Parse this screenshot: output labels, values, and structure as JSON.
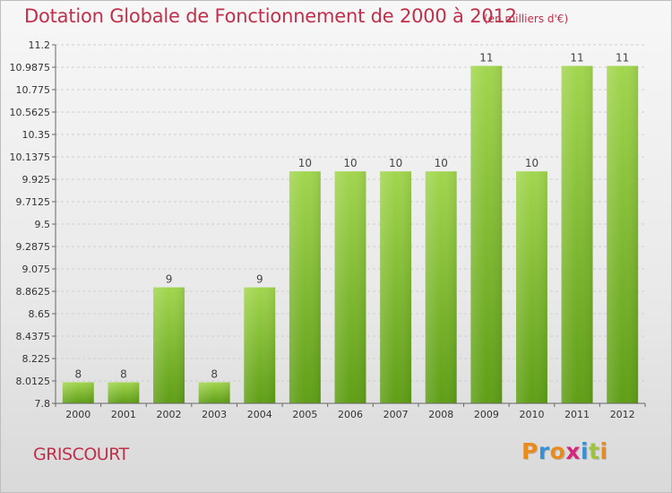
{
  "title": "Dotation Globale de Fonctionnement de 2000 à 2012",
  "subtitle": "(en milliers d'€)",
  "place_name": "GRISCOURT",
  "brand": {
    "letters": [
      "P",
      "r",
      "o",
      "x",
      "i",
      "t",
      "i"
    ],
    "colors": [
      "#e98a1c",
      "#3a90d4",
      "#e98a1c",
      "#d4287a",
      "#3a90d4",
      "#9bc43a",
      "#e98a1c"
    ]
  },
  "colors": {
    "bar": "#7cbf35",
    "title": "#c0304a"
  },
  "chart_data": {
    "type": "bar",
    "categories": [
      "2000",
      "2001",
      "2002",
      "2003",
      "2004",
      "2005",
      "2006",
      "2007",
      "2008",
      "2009",
      "2010",
      "2011",
      "2012"
    ],
    "values": [
      8,
      8,
      9,
      8,
      9,
      10,
      10,
      10,
      10,
      11,
      10,
      11,
      11
    ],
    "data_labels": [
      "8",
      "8",
      "9",
      "8",
      "9",
      "10",
      "10",
      "10",
      "10",
      "11",
      "10",
      "11",
      "11"
    ],
    "bar_levels": [
      8.0,
      8.0,
      8.9,
      8.0,
      8.9,
      10.0,
      10.0,
      10.0,
      10.0,
      11.0,
      10.0,
      11.0,
      11.0
    ],
    "ylim": [
      7.8,
      11.2
    ],
    "yticks": [
      "7.8",
      "8.0125",
      "8.225",
      "8.4375",
      "8.65",
      "8.8625",
      "9.075",
      "9.2875",
      "9.5",
      "9.7125",
      "9.925",
      "10.1375",
      "10.35",
      "10.5625",
      "10.775",
      "10.9875",
      "11.2"
    ],
    "grid": true,
    "xlabel": "",
    "ylabel": ""
  }
}
